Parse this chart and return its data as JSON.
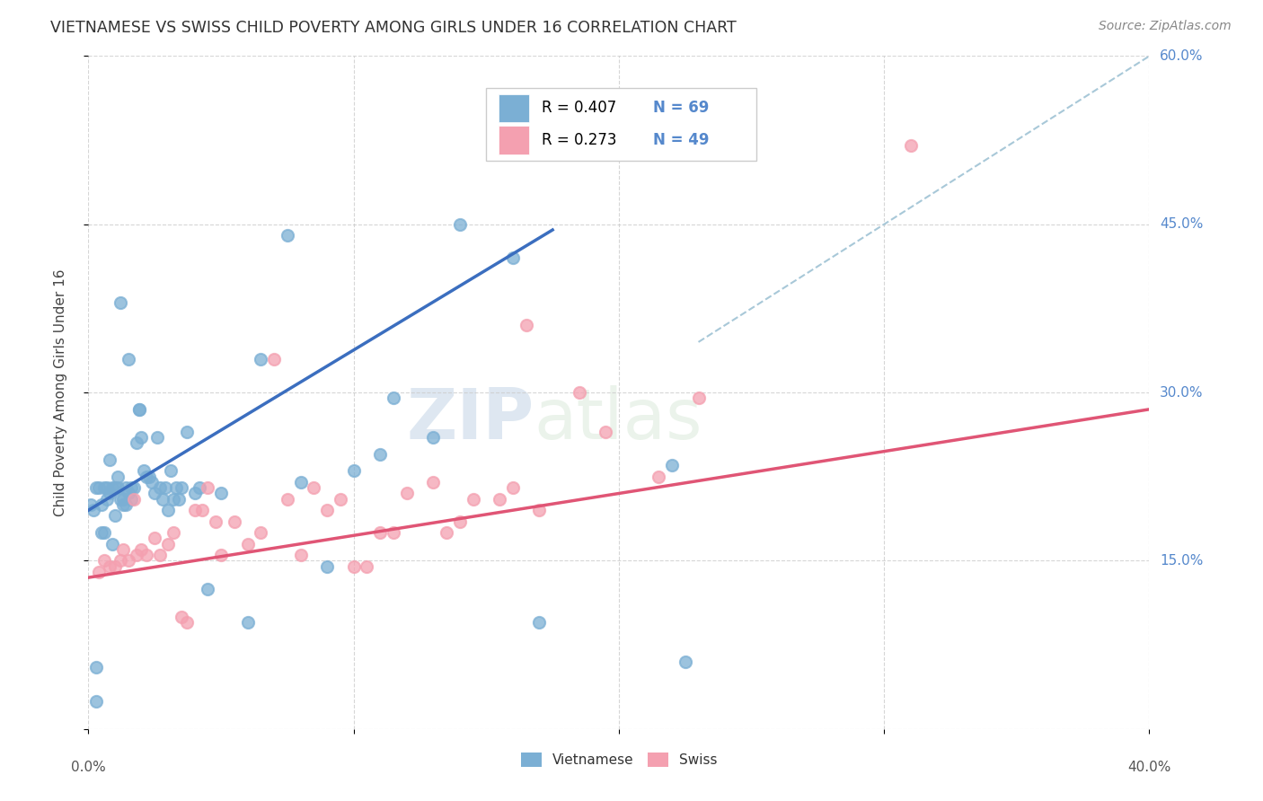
{
  "title": "VIETNAMESE VS SWISS CHILD POVERTY AMONG GIRLS UNDER 16 CORRELATION CHART",
  "source": "Source: ZipAtlas.com",
  "ylabel": "Child Poverty Among Girls Under 16",
  "xmin": 0.0,
  "xmax": 0.4,
  "ymin": 0.0,
  "ymax": 0.6,
  "yticks": [
    0.0,
    0.15,
    0.3,
    0.45,
    0.6
  ],
  "xtick_positions": [
    0.0,
    0.1,
    0.2,
    0.3,
    0.4
  ],
  "color_vietnamese": "#7BAFD4",
  "color_swiss": "#F4A0B0",
  "color_line_vietnamese": "#3B6EBF",
  "color_line_swiss": "#E05575",
  "color_dashed": "#A8C8D8",
  "background_color": "#FFFFFF",
  "axis_label_color": "#5588CC",
  "watermark_zip": "ZIP",
  "watermark_atlas": "atlas",
  "viet_line_x0": 0.0,
  "viet_line_y0": 0.195,
  "viet_line_x1": 0.175,
  "viet_line_y1": 0.445,
  "swiss_line_x0": 0.0,
  "swiss_line_y0": 0.135,
  "swiss_line_x1": 0.4,
  "swiss_line_y1": 0.285,
  "vietnamese_x": [
    0.001,
    0.002,
    0.003,
    0.003,
    0.004,
    0.005,
    0.005,
    0.006,
    0.006,
    0.007,
    0.007,
    0.008,
    0.008,
    0.009,
    0.009,
    0.01,
    0.01,
    0.011,
    0.011,
    0.012,
    0.012,
    0.013,
    0.013,
    0.014,
    0.014,
    0.015,
    0.015,
    0.016,
    0.016,
    0.017,
    0.018,
    0.019,
    0.019,
    0.02,
    0.021,
    0.022,
    0.023,
    0.024,
    0.025,
    0.026,
    0.027,
    0.028,
    0.029,
    0.03,
    0.031,
    0.032,
    0.033,
    0.034,
    0.035,
    0.037,
    0.04,
    0.042,
    0.045,
    0.05,
    0.06,
    0.065,
    0.075,
    0.08,
    0.09,
    0.1,
    0.11,
    0.115,
    0.13,
    0.14,
    0.16,
    0.17,
    0.22,
    0.225,
    0.003
  ],
  "vietnamese_y": [
    0.2,
    0.195,
    0.215,
    0.025,
    0.215,
    0.2,
    0.175,
    0.215,
    0.175,
    0.205,
    0.215,
    0.21,
    0.24,
    0.165,
    0.215,
    0.19,
    0.215,
    0.225,
    0.215,
    0.205,
    0.38,
    0.2,
    0.205,
    0.2,
    0.215,
    0.33,
    0.21,
    0.205,
    0.215,
    0.215,
    0.255,
    0.285,
    0.285,
    0.26,
    0.23,
    0.225,
    0.225,
    0.22,
    0.21,
    0.26,
    0.215,
    0.205,
    0.215,
    0.195,
    0.23,
    0.205,
    0.215,
    0.205,
    0.215,
    0.265,
    0.21,
    0.215,
    0.125,
    0.21,
    0.095,
    0.33,
    0.44,
    0.22,
    0.145,
    0.23,
    0.245,
    0.295,
    0.26,
    0.45,
    0.42,
    0.095,
    0.235,
    0.06,
    0.055
  ],
  "swiss_x": [
    0.004,
    0.006,
    0.008,
    0.01,
    0.012,
    0.013,
    0.015,
    0.017,
    0.018,
    0.02,
    0.022,
    0.025,
    0.027,
    0.03,
    0.032,
    0.035,
    0.037,
    0.04,
    0.043,
    0.045,
    0.048,
    0.05,
    0.055,
    0.06,
    0.065,
    0.07,
    0.075,
    0.08,
    0.085,
    0.09,
    0.095,
    0.1,
    0.105,
    0.11,
    0.115,
    0.12,
    0.13,
    0.135,
    0.14,
    0.145,
    0.155,
    0.16,
    0.165,
    0.17,
    0.185,
    0.195,
    0.215,
    0.23,
    0.31
  ],
  "swiss_y": [
    0.14,
    0.15,
    0.145,
    0.145,
    0.15,
    0.16,
    0.15,
    0.205,
    0.155,
    0.16,
    0.155,
    0.17,
    0.155,
    0.165,
    0.175,
    0.1,
    0.095,
    0.195,
    0.195,
    0.215,
    0.185,
    0.155,
    0.185,
    0.165,
    0.175,
    0.33,
    0.205,
    0.155,
    0.215,
    0.195,
    0.205,
    0.145,
    0.145,
    0.175,
    0.175,
    0.21,
    0.22,
    0.175,
    0.185,
    0.205,
    0.205,
    0.215,
    0.36,
    0.195,
    0.3,
    0.265,
    0.225,
    0.295,
    0.52
  ]
}
